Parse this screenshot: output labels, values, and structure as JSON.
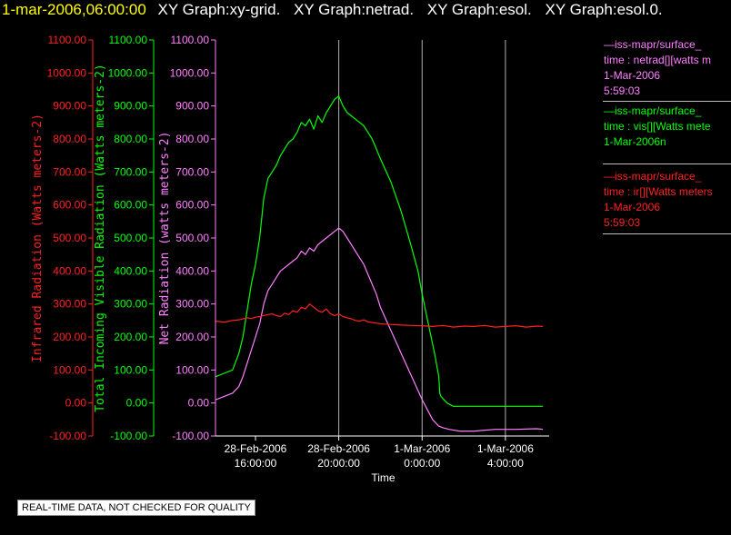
{
  "header": {
    "date": "1-mar-2006,06:00:00",
    "graphs": [
      "XY Graph:xy-grid.",
      "XY Graph:netrad.",
      "XY Graph:esol.",
      "XY Graph:esol.0."
    ]
  },
  "legend": [
    {
      "color": "#ff80ff",
      "lines": [
        "—iss-mapr/surface_",
        "time : netrad[][watts m",
        "1-Mar-2006",
        "5:59:03"
      ]
    },
    {
      "color": "#00ff00",
      "lines": [
        "—iss-mapr/surface_",
        "time : vis[][Watts mete",
        "1-Mar-2006n"
      ]
    },
    {
      "color": "#ff2020",
      "lines": [
        "—iss-mapr/surface_",
        "time : ir[][Watts meters",
        "1-Mar-2006",
        "5:59:03"
      ]
    }
  ],
  "quality_note": "REAL-TIME DATA, NOT CHECKED FOR QUALITY",
  "chart_data": {
    "type": "line",
    "xlabel": "Time",
    "x_ticks": [
      {
        "value": 16,
        "label": [
          "28-Feb-2006",
          "16:00:00"
        ]
      },
      {
        "value": 20,
        "label": [
          "28-Feb-2006",
          "20:00:00"
        ]
      },
      {
        "value": 24,
        "label": [
          "1-Mar-2006",
          "0:00:00"
        ]
      },
      {
        "value": 28,
        "label": [
          "1-Mar-2006",
          "4:00:00"
        ]
      }
    ],
    "xlim": [
      14.08,
      30.1
    ],
    "ylim": [
      -100,
      1100
    ],
    "y_ticks": [
      -100,
      0,
      100,
      200,
      300,
      400,
      500,
      600,
      700,
      800,
      900,
      1000,
      1100
    ],
    "grid_x": [
      20,
      24,
      28
    ],
    "axes": [
      {
        "name": "infrared",
        "label": "Infrared Radiation (Watts meters-2)",
        "color": "#ff2020",
        "tick_labels": [
          "-100.00",
          "0.00",
          "100.00",
          "200.00",
          "300.00",
          "400.00",
          "500.00",
          "600.00",
          "700.00",
          "800.00",
          "900.00",
          "1000.00",
          "1100.00"
        ]
      },
      {
        "name": "visible",
        "label": "Total Incoming Visible Radiation (Watts meters-2)",
        "color": "#00ff00",
        "tick_labels": [
          "-100.00",
          "0.00",
          "100.00",
          "200.00",
          "300.00",
          "400.00",
          "500.00",
          "600.00",
          "700.00",
          "800.00",
          "900.00",
          "1000.00",
          "1100.00"
        ]
      },
      {
        "name": "netrad",
        "label": "Net Radiation (watts meters-2)",
        "color": "#ff80ff",
        "tick_labels": [
          "-100.00",
          "0.00",
          "100.00",
          "200.00",
          "300.00",
          "400.00",
          "500.00",
          "600.00",
          "700.00",
          "800.00",
          "900.00",
          "1000.00",
          "1100.00"
        ]
      }
    ],
    "series": [
      {
        "color": "#00ff00",
        "x": [
          14.1,
          14.5,
          14.9,
          15.2,
          15.4,
          15.6,
          15.8,
          16.0,
          16.2,
          16.4,
          16.6,
          16.8,
          17.0,
          17.2,
          17.4,
          17.6,
          17.8,
          18.0,
          18.2,
          18.4,
          18.6,
          18.8,
          19.0,
          19.2,
          19.4,
          19.6,
          19.8,
          20.0,
          20.2,
          20.4,
          20.6,
          20.8,
          21.0,
          21.2,
          21.4,
          21.6,
          21.8,
          22.0,
          22.5,
          23.0,
          23.5,
          23.8,
          24.0,
          24.3,
          24.6,
          24.8,
          24.85,
          24.9,
          25.2,
          25.5,
          25.8,
          26.0,
          26.5,
          27.0,
          28.0,
          29.0,
          29.8
        ],
        "y": [
          80,
          90,
          100,
          150,
          200,
          280,
          360,
          420,
          500,
          620,
          680,
          700,
          720,
          750,
          770,
          790,
          800,
          820,
          850,
          840,
          860,
          830,
          870,
          850,
          880,
          900,
          920,
          930,
          900,
          880,
          870,
          860,
          850,
          840,
          820,
          800,
          770,
          740,
          670,
          580,
          470,
          400,
          330,
          240,
          150,
          80,
          30,
          20,
          0,
          -10,
          -10,
          -10,
          -10,
          -10,
          -10,
          -10,
          -10
        ]
      },
      {
        "color": "#ff80ff",
        "x": [
          14.1,
          14.5,
          14.9,
          15.2,
          15.4,
          15.6,
          15.8,
          16.0,
          16.2,
          16.4,
          16.6,
          16.8,
          17.0,
          17.2,
          17.4,
          17.6,
          17.8,
          18.0,
          18.2,
          18.4,
          18.6,
          18.8,
          19.0,
          19.2,
          19.4,
          19.6,
          19.8,
          20.0,
          20.2,
          20.4,
          20.6,
          20.8,
          21.0,
          21.2,
          21.4,
          21.6,
          21.8,
          22.0,
          22.5,
          23.0,
          23.5,
          24.0,
          24.5,
          24.8,
          25.0,
          25.3,
          25.8,
          26.5,
          27.5,
          28.5,
          29.5,
          29.8
        ],
        "y": [
          10,
          20,
          30,
          50,
          80,
          120,
          160,
          200,
          240,
          300,
          340,
          360,
          380,
          400,
          410,
          420,
          430,
          440,
          460,
          450,
          470,
          460,
          480,
          490,
          500,
          510,
          520,
          530,
          520,
          500,
          480,
          460,
          440,
          420,
          390,
          360,
          330,
          290,
          220,
          150,
          80,
          10,
          -50,
          -70,
          -75,
          -80,
          -85,
          -85,
          -80,
          -80,
          -78,
          -80
        ]
      },
      {
        "color": "#ff2020",
        "x": [
          14.1,
          14.5,
          14.9,
          15.2,
          15.4,
          15.6,
          15.8,
          16.0,
          16.2,
          16.4,
          16.6,
          16.8,
          17.0,
          17.2,
          17.4,
          17.6,
          17.8,
          18.0,
          18.2,
          18.4,
          18.6,
          18.8,
          19.0,
          19.2,
          19.4,
          19.6,
          19.8,
          20.0,
          20.2,
          20.4,
          20.6,
          20.8,
          21.0,
          21.2,
          21.4,
          21.6,
          21.8,
          22.0,
          22.5,
          23.0,
          23.5,
          24.0,
          24.5,
          25.0,
          25.5,
          26.0,
          26.5,
          27.0,
          27.5,
          28.0,
          28.5,
          29.0,
          29.5,
          29.8
        ],
        "y": [
          248,
          245,
          250,
          252,
          255,
          258,
          256,
          260,
          262,
          265,
          268,
          270,
          265,
          262,
          272,
          268,
          280,
          275,
          290,
          285,
          300,
          290,
          280,
          275,
          285,
          270,
          265,
          270,
          262,
          258,
          255,
          250,
          248,
          252,
          246,
          244,
          242,
          240,
          238,
          236,
          235,
          234,
          232,
          235,
          230,
          233,
          232,
          235,
          230,
          232,
          234,
          230,
          233,
          232
        ]
      }
    ]
  }
}
